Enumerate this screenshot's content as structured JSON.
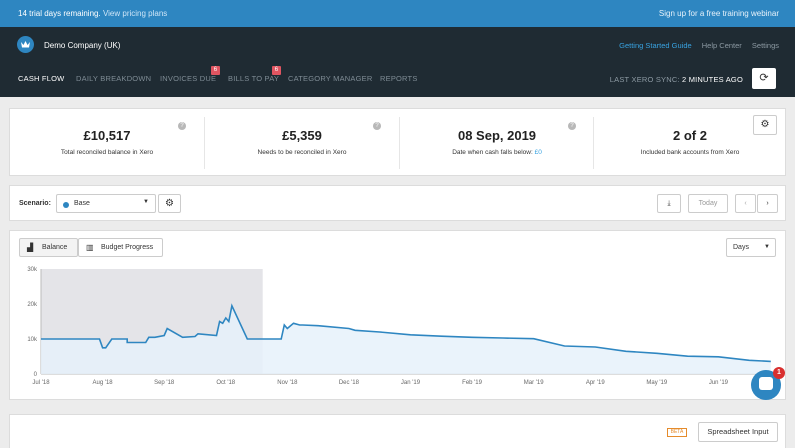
{
  "trial_bar": {
    "message": "14 trial days remaining.",
    "link": "View pricing plans",
    "webinar": "Sign up for a free training webinar"
  },
  "header": {
    "company": "Demo Company (UK)",
    "links": [
      "Getting Started Guide",
      "Help Center",
      "Settings"
    ],
    "accent_color": "#38a2e0"
  },
  "nav": {
    "items": [
      {
        "label": "CASH FLOW",
        "active": true
      },
      {
        "label": "DAILY BREAKDOWN",
        "active": false
      },
      {
        "label": "INVOICES DUE",
        "active": false,
        "badge": "6"
      },
      {
        "label": "BILLS TO PAY",
        "active": false,
        "badge": "6"
      },
      {
        "label": "CATEGORY MANAGER",
        "active": false
      },
      {
        "label": "REPORTS",
        "active": false
      }
    ],
    "sync_label": "LAST XERO SYNC:",
    "sync_value": "2 MINUTES AGO"
  },
  "stats": [
    {
      "value": "£10,517",
      "label": "Total reconciled balance in Xero"
    },
    {
      "value": "£5,359",
      "label": "Needs to be reconciled in Xero"
    },
    {
      "value": "08 Sep, 2019",
      "label": "Date when cash falls below:",
      "link": "£0"
    },
    {
      "value": "2 of 2",
      "label": "Included bank accounts from Xero"
    }
  ],
  "scenario": {
    "label": "Scenario:",
    "selected": "Base",
    "today": "Today"
  },
  "chart_controls": {
    "balance": "Balance",
    "budget": "Budget Progress",
    "period": "Days"
  },
  "chart_data": {
    "type": "area",
    "x_labels": [
      "Jul '18",
      "Aug '18",
      "Sep '18",
      "Oct '18",
      "Nov '18",
      "Dec '18",
      "Jan '19",
      "Feb '19",
      "Mar '19",
      "Apr '19",
      "May '19",
      "Jun '19"
    ],
    "y_ticks": [
      "30k",
      "20k",
      "10k",
      "0"
    ],
    "ylim": [
      0,
      30000
    ],
    "x": [
      0,
      0.95,
      1.0,
      1.05,
      1.15,
      1.3,
      1.4,
      1.4,
      1.7,
      1.75,
      1.85,
      2.0,
      2.05,
      2.3,
      2.5,
      2.55,
      2.85,
      2.9,
      2.95,
      3.0,
      3.05,
      3.1,
      3.1,
      3.35,
      3.4,
      3.9,
      3.95,
      4.0,
      4.1,
      4.2,
      4.25,
      4.5,
      5.0,
      5.1,
      5.5,
      6.0,
      6.5,
      7.0,
      7.5,
      8.0,
      8.5,
      9.0,
      9.5,
      10.0,
      10.5,
      11.0,
      11.5,
      11.85
    ],
    "y": [
      10000,
      10000,
      7500,
      7500,
      10000,
      10000,
      10000,
      9000,
      9000,
      10500,
      10500,
      11000,
      13000,
      10500,
      10700,
      11500,
      11000,
      15000,
      14500,
      16000,
      15000,
      19500,
      19500,
      10000,
      10000,
      10000,
      14000,
      13000,
      14500,
      14000,
      14000,
      13800,
      13000,
      12500,
      12000,
      11200,
      10800,
      10500,
      10300,
      10100,
      8000,
      7700,
      6500,
      5900,
      5100,
      4900,
      3900,
      3600
    ],
    "actual_until_x": 3.6,
    "line_color": "#2e86c1",
    "fill_color": "#e6f1fa",
    "past_shade": "#e4e4e8"
  },
  "bottom": {
    "beta": "BETA",
    "spreadsheet": "Spreadsheet Input"
  },
  "chat_badge": "1"
}
